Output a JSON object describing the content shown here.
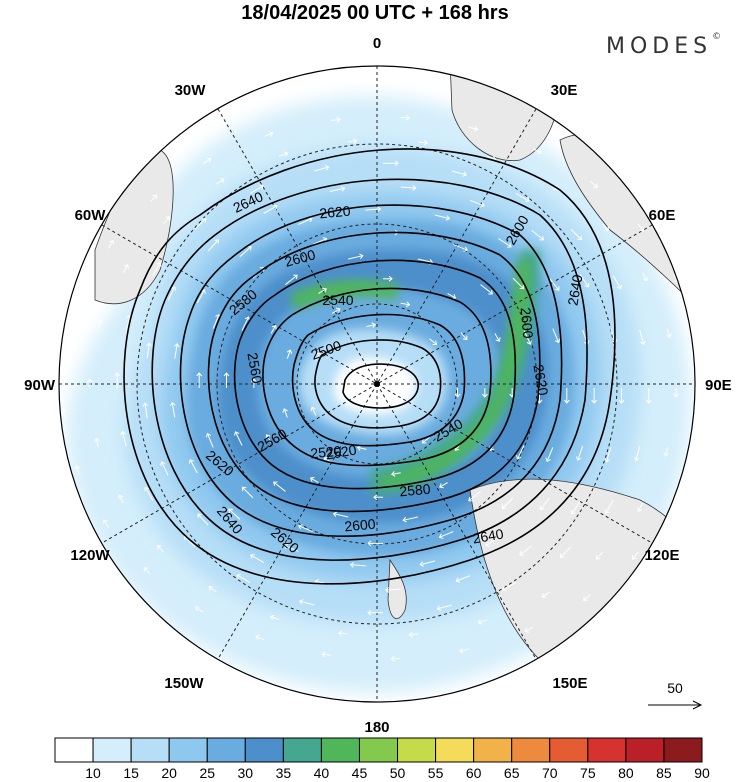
{
  "title": "18/04/2025  00 UTC  + 168 hrs",
  "brand": "MODES",
  "brand_mark": "©",
  "map": {
    "projection": "north polar stereographic",
    "longitude_labels": [
      "0",
      "30E",
      "60E",
      "90E",
      "120E",
      "150E",
      "180",
      "150W",
      "120W",
      "90W",
      "60W",
      "30W"
    ],
    "contour_labels": [
      "2640",
      "2620",
      "2600",
      "2580",
      "2560",
      "2540",
      "2520",
      "2500",
      "2620",
      "2600",
      "2640",
      "2620",
      "2540",
      "2520",
      "2560",
      "2580",
      "2600",
      "2640",
      "2600",
      "2620",
      "2640"
    ],
    "contour_color": "#000000",
    "wind_vector_color": "#ffffff"
  },
  "reference_vector": {
    "label": "50"
  },
  "colorbar": {
    "ticks": [
      "10",
      "15",
      "20",
      "25",
      "30",
      "35",
      "40",
      "45",
      "50",
      "55",
      "60",
      "65",
      "70",
      "75",
      "80",
      "85",
      "90"
    ],
    "colors": [
      "#ffffff",
      "#d4eefb",
      "#b6def7",
      "#8fc8ef",
      "#6aacdf",
      "#4d8fcb",
      "#45a78f",
      "#4fb65a",
      "#83c94d",
      "#c5db4a",
      "#f4dc5a",
      "#f2b24a",
      "#ee8a3e",
      "#e55c33",
      "#d53230",
      "#bb2028",
      "#8c1b1d"
    ]
  }
}
